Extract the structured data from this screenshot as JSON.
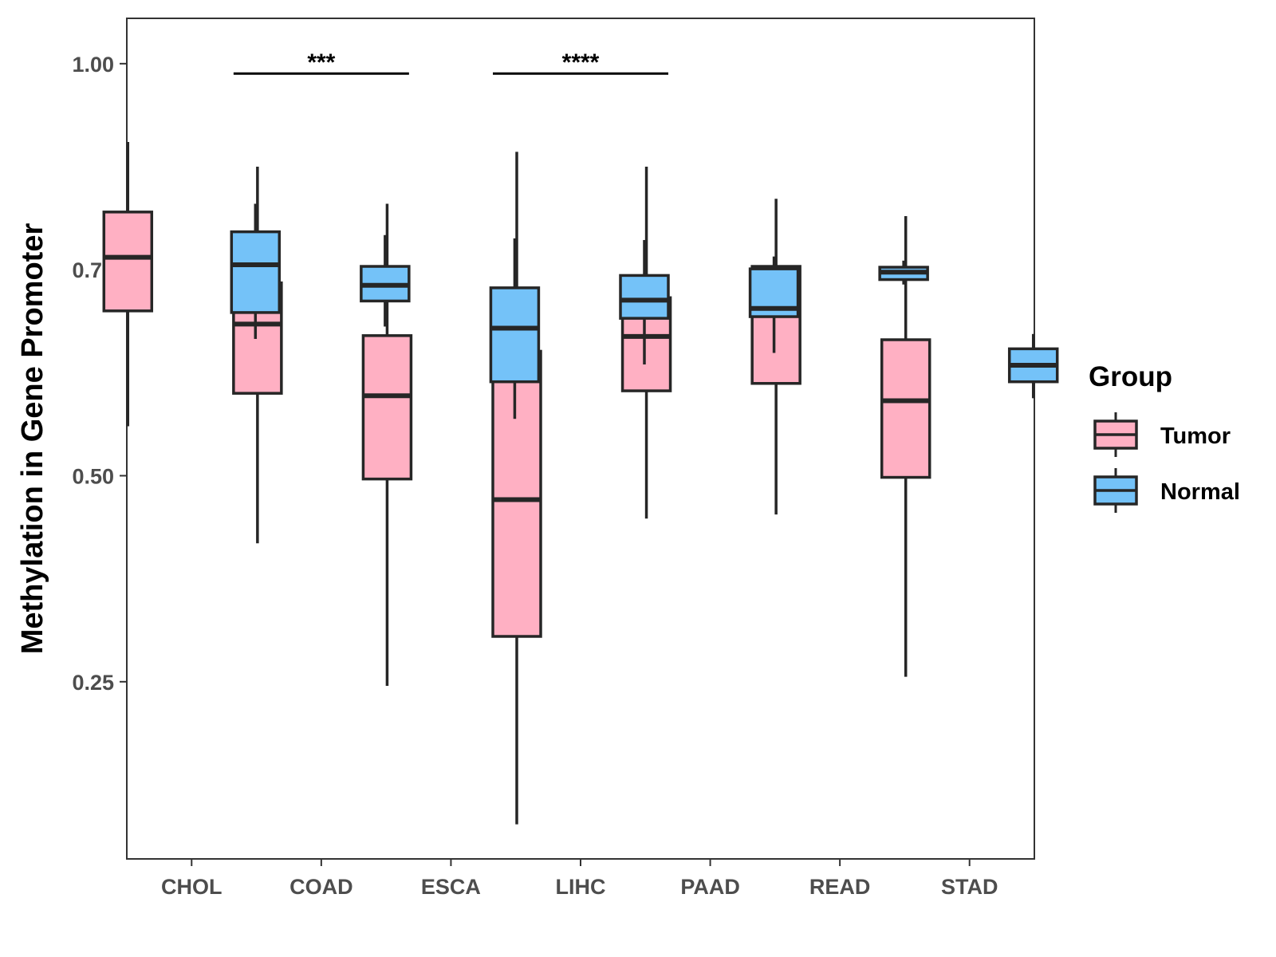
{
  "chart_data": {
    "type": "boxplot",
    "title": "",
    "xlabel": "",
    "ylabel": "Methylation in Gene Promoter",
    "ylim": [
      0.035,
      1.055
    ],
    "yticks": [
      0.25,
      0.5,
      0.75,
      1.0
    ],
    "ytick_labels": [
      "0.25",
      "0.50",
      "0.75",
      "1.00"
    ],
    "categories": [
      "CHOL",
      "COAD",
      "ESCA",
      "LIHC",
      "PAAD",
      "READ",
      "STAD"
    ],
    "legend": {
      "title": "Group",
      "position": "right",
      "entries": [
        "Tumor",
        "Normal"
      ]
    },
    "series": [
      {
        "name": "Tumor",
        "color": "#FFB0C3",
        "boxes": [
          {
            "min": 0.56,
            "q1": 0.7,
            "median": 0.765,
            "q3": 0.82,
            "max": 0.905
          },
          {
            "min": 0.418,
            "q1": 0.6,
            "median": 0.684,
            "q3": 0.734,
            "max": 0.875
          },
          {
            "min": 0.245,
            "q1": 0.496,
            "median": 0.597,
            "q3": 0.67,
            "max": 0.83
          },
          {
            "min": 0.077,
            "q1": 0.305,
            "median": 0.471,
            "q3": 0.651,
            "max": 0.893
          },
          {
            "min": 0.448,
            "q1": 0.603,
            "median": 0.669,
            "q3": 0.716,
            "max": 0.875
          },
          {
            "min": 0.453,
            "q1": 0.612,
            "median": 0.703,
            "q3": 0.754,
            "max": 0.836
          },
          {
            "min": 0.256,
            "q1": 0.498,
            "median": 0.591,
            "q3": 0.665,
            "max": 0.815
          }
        ]
      },
      {
        "name": "Normal",
        "color": "#74C2F8",
        "boxes": [
          {
            "min": 0.666,
            "q1": 0.698,
            "median": 0.756,
            "q3": 0.796,
            "max": 0.83
          },
          {
            "min": 0.681,
            "q1": 0.712,
            "median": 0.731,
            "q3": 0.754,
            "max": 0.792
          },
          {
            "min": 0.569,
            "q1": 0.614,
            "median": 0.679,
            "q3": 0.728,
            "max": 0.788
          },
          {
            "min": 0.635,
            "q1": 0.691,
            "median": 0.713,
            "q3": 0.743,
            "max": 0.786
          },
          {
            "min": 0.649,
            "q1": 0.693,
            "median": 0.703,
            "q3": 0.751,
            "max": 0.766
          },
          {
            "min": 0.732,
            "q1": 0.738,
            "median": 0.747,
            "q3": 0.753,
            "max": 0.761
          },
          {
            "min": 0.594,
            "q1": 0.614,
            "median": 0.634,
            "q3": 0.654,
            "max": 0.672
          }
        ]
      }
    ],
    "annotations": [
      {
        "category": "COAD",
        "label": "***",
        "y": 0.988
      },
      {
        "category": "LIHC",
        "label": "****",
        "y": 0.988
      }
    ]
  }
}
